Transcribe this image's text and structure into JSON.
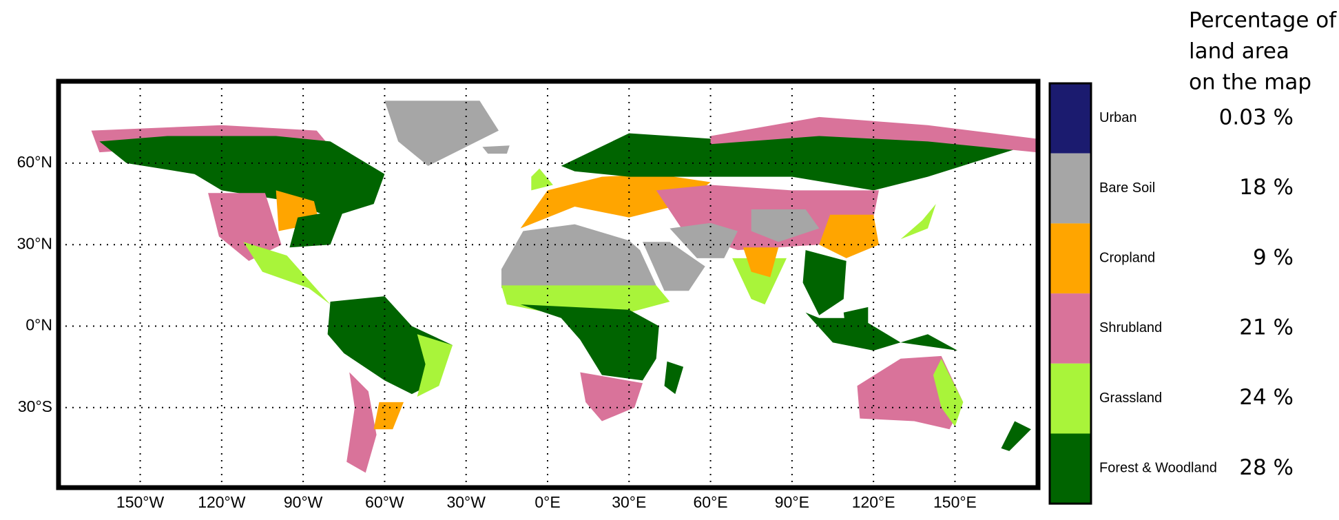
{
  "map": {
    "x_labels": [
      "150°W",
      "120°W",
      "90°W",
      "60°W",
      "30°W",
      "0°E",
      "30°E",
      "60°E",
      "90°E",
      "120°E",
      "150°E"
    ],
    "y_labels": [
      "60°N",
      "30°N",
      "0°N",
      "30°S"
    ]
  },
  "legend": {
    "title": [
      "Percentage of",
      "land area",
      "on the map"
    ],
    "items": [
      {
        "label": "Urban",
        "color": "#1b1b6f",
        "percent": "0.03 %"
      },
      {
        "label": "Bare Soil",
        "color": "#a6a6a6",
        "percent": "18 %"
      },
      {
        "label": "Cropland",
        "color": "#ffa500",
        "percent": "9 %"
      },
      {
        "label": "Shrubland",
        "color": "#d9739a",
        "percent": "21 %"
      },
      {
        "label": "Grassland",
        "color": "#a9f43a",
        "percent": "24 %"
      },
      {
        "label": "Forest & Woodland",
        "color": "#006400",
        "percent": "28 %"
      }
    ]
  }
}
